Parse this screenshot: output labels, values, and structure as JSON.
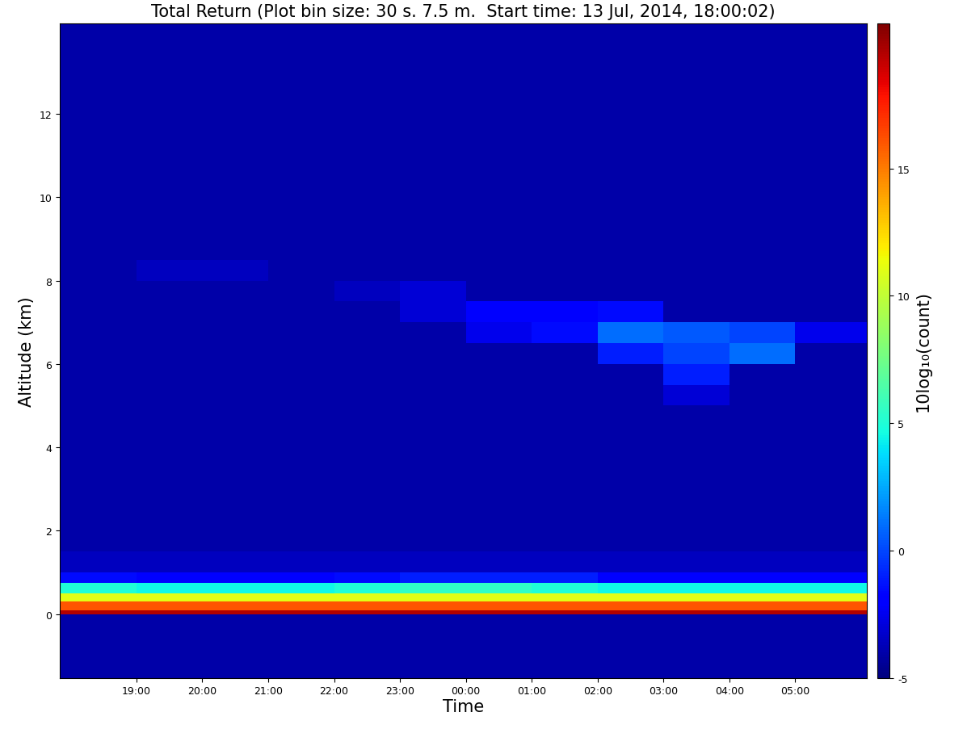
{
  "chart_data": {
    "type": "heatmap",
    "title": "Total Return (Plot bin size: 30 s. 7.5 m.  Start time: 13 Jul, 2014, 18:00:02)",
    "x_label": "Time",
    "y_label": "Altitude (km)",
    "xlim": [
      17.84,
      30.08
    ],
    "xticks": [
      {
        "value": 19,
        "label": "19:00"
      },
      {
        "value": 20,
        "label": "20:00"
      },
      {
        "value": 21,
        "label": "21:00"
      },
      {
        "value": 22,
        "label": "22:00"
      },
      {
        "value": 23,
        "label": "23:00"
      },
      {
        "value": 24,
        "label": "00:00"
      },
      {
        "value": 25,
        "label": "01:00"
      },
      {
        "value": 26,
        "label": "02:00"
      },
      {
        "value": 27,
        "label": "03:00"
      },
      {
        "value": 28,
        "label": "04:00"
      },
      {
        "value": 29,
        "label": "05:00"
      }
    ],
    "ylim": [
      -1.53,
      14.17
    ],
    "yticks": [
      0,
      2,
      4,
      6,
      8,
      10,
      12
    ],
    "x_edges": [
      17.84,
      19,
      20,
      21,
      22,
      23,
      24,
      25,
      26,
      27,
      28,
      29,
      30.08
    ],
    "y_edges": [
      -1.53,
      -1,
      -0.5,
      0,
      0.1,
      0.3,
      0.5,
      0.75,
      1,
      1.5,
      2,
      2.5,
      3,
      3.5,
      4,
      4.5,
      5,
      5.5,
      6,
      6.5,
      7,
      7.5,
      8,
      8.5,
      9,
      9.5,
      10,
      10.5,
      11,
      11.5,
      12,
      12.5,
      13,
      13.5,
      14.17
    ],
    "cells": [
      [
        -4,
        -4,
        -4,
        -4,
        -4,
        -4,
        -4,
        -4,
        -4,
        -4,
        -4,
        -4
      ],
      [
        -4,
        -4,
        -4,
        -4,
        -4,
        -4,
        -4,
        -4,
        -4,
        -4,
        -4,
        -4
      ],
      [
        -4,
        -4,
        -4,
        -4,
        -4,
        -4,
        -4,
        -4,
        -4,
        -4,
        -4,
        -4
      ],
      [
        19.5,
        19.5,
        19.5,
        19.5,
        19.5,
        19.5,
        19.5,
        19.5,
        19.5,
        19.5,
        19.5,
        19.5
      ],
      [
        16,
        16,
        16,
        16,
        16,
        16,
        16,
        16,
        16,
        16,
        16,
        16
      ],
      [
        11,
        11,
        11,
        11,
        11,
        11,
        11,
        11,
        11,
        11,
        11,
        11
      ],
      [
        5,
        4.5,
        4.5,
        4.5,
        5,
        5.5,
        5.5,
        5,
        4.5,
        4.5,
        4.5,
        4.5
      ],
      [
        -1.5,
        -2,
        -2,
        -2,
        -1.5,
        -1,
        -1,
        -1,
        -2,
        -2,
        -2,
        -2
      ],
      [
        -3.5,
        -3.5,
        -3.5,
        -3.5,
        -3.5,
        -3.5,
        -3.5,
        -3.5,
        -3.5,
        -3.5,
        -3.5,
        -3.5
      ],
      [
        -4,
        -4,
        -4,
        -4,
        -4,
        -4,
        -4,
        -4,
        -4,
        -4,
        -4,
        -4
      ],
      [
        -4,
        -4,
        -4,
        -4,
        -4,
        -4,
        -4,
        -4,
        -4,
        -4,
        -4,
        -4
      ],
      [
        -4,
        -4,
        -4,
        -4,
        -4,
        -4,
        -4,
        -4,
        -4,
        -4,
        -4,
        -4
      ],
      [
        -4,
        -4,
        -4,
        -4,
        -4,
        -4,
        -4,
        -4,
        -4,
        -4,
        -4,
        -4
      ],
      [
        -4,
        -4,
        -4,
        -4,
        -4,
        -4,
        -4,
        -4,
        -4,
        -4,
        -4,
        -4
      ],
      [
        -4,
        -4,
        -4,
        -4,
        -4,
        -4,
        -4,
        -4,
        -4,
        -4,
        -4,
        -4
      ],
      [
        -4,
        -4,
        -4,
        -4,
        -4,
        -4,
        -4,
        -4,
        -4,
        -4,
        -4,
        -4
      ],
      [
        -4,
        -4,
        -4,
        -4,
        -4,
        -4,
        -4,
        -4,
        -4,
        -3,
        -4,
        -4
      ],
      [
        -4,
        -4,
        -4,
        -4,
        -4,
        -4,
        -4,
        -4,
        -4,
        -1,
        -4,
        -4
      ],
      [
        -4,
        -4,
        -4,
        -4,
        -4,
        -4,
        -4,
        -4,
        -1,
        0,
        1,
        -4
      ],
      [
        -4,
        -4,
        -4,
        -4,
        -4,
        -4,
        -2.5,
        -1.5,
        1,
        0.5,
        0,
        -2.5
      ],
      [
        -4,
        -4,
        -4,
        -4,
        -4,
        -3,
        -2,
        -2,
        -1.5,
        -4,
        -4,
        -4
      ],
      [
        -4,
        -4,
        -4,
        -4,
        -3.5,
        -3,
        -4,
        -4,
        -4,
        -4,
        -4,
        -4
      ],
      [
        -4,
        -3.5,
        -3.5,
        -4,
        -4,
        -4,
        -4,
        -4,
        -4,
        -4,
        -4,
        -4
      ],
      [
        -4,
        -4,
        -4,
        -4,
        -4,
        -4,
        -4,
        -4,
        -4,
        -4,
        -4,
        -4
      ],
      [
        -4,
        -4,
        -4,
        -4,
        -4,
        -4,
        -4,
        -4,
        -4,
        -4,
        -4,
        -4
      ],
      [
        -4,
        -4,
        -4,
        -4,
        -4,
        -4,
        -4,
        -4,
        -4,
        -4,
        -4,
        -4
      ],
      [
        -4,
        -4,
        -4,
        -4,
        -4,
        -4,
        -4,
        -4,
        -4,
        -4,
        -4,
        -4
      ],
      [
        -4,
        -4,
        -4,
        -4,
        -4,
        -4,
        -4,
        -4,
        -4,
        -4,
        -4,
        -4
      ],
      [
        -4,
        -4,
        -4,
        -4,
        -4,
        -4,
        -4,
        -4,
        -4,
        -4,
        -4,
        -4
      ],
      [
        -4,
        -4,
        -4,
        -4,
        -4,
        -4,
        -4,
        -4,
        -4,
        -4,
        -4,
        -4
      ],
      [
        -4,
        -4,
        -4,
        -4,
        -4,
        -4,
        -4,
        -4,
        -4,
        -4,
        -4,
        -4
      ],
      [
        -4,
        -4,
        -4,
        -4,
        -4,
        -4,
        -4,
        -4,
        -4,
        -4,
        -4,
        -4
      ],
      [
        -4,
        -4,
        -4,
        -4,
        -4,
        -4,
        -4,
        -4,
        -4,
        -4,
        -4,
        -4
      ],
      [
        -4,
        -4,
        -4,
        -4,
        -4,
        -4,
        -4,
        -4,
        -4,
        -4,
        -4,
        -4
      ]
    ],
    "color_range": [
      -5,
      20.7
    ],
    "color_ticks": [
      -5,
      0,
      5,
      10,
      15
    ],
    "colorbar_label": "10log₁₀(count)"
  }
}
